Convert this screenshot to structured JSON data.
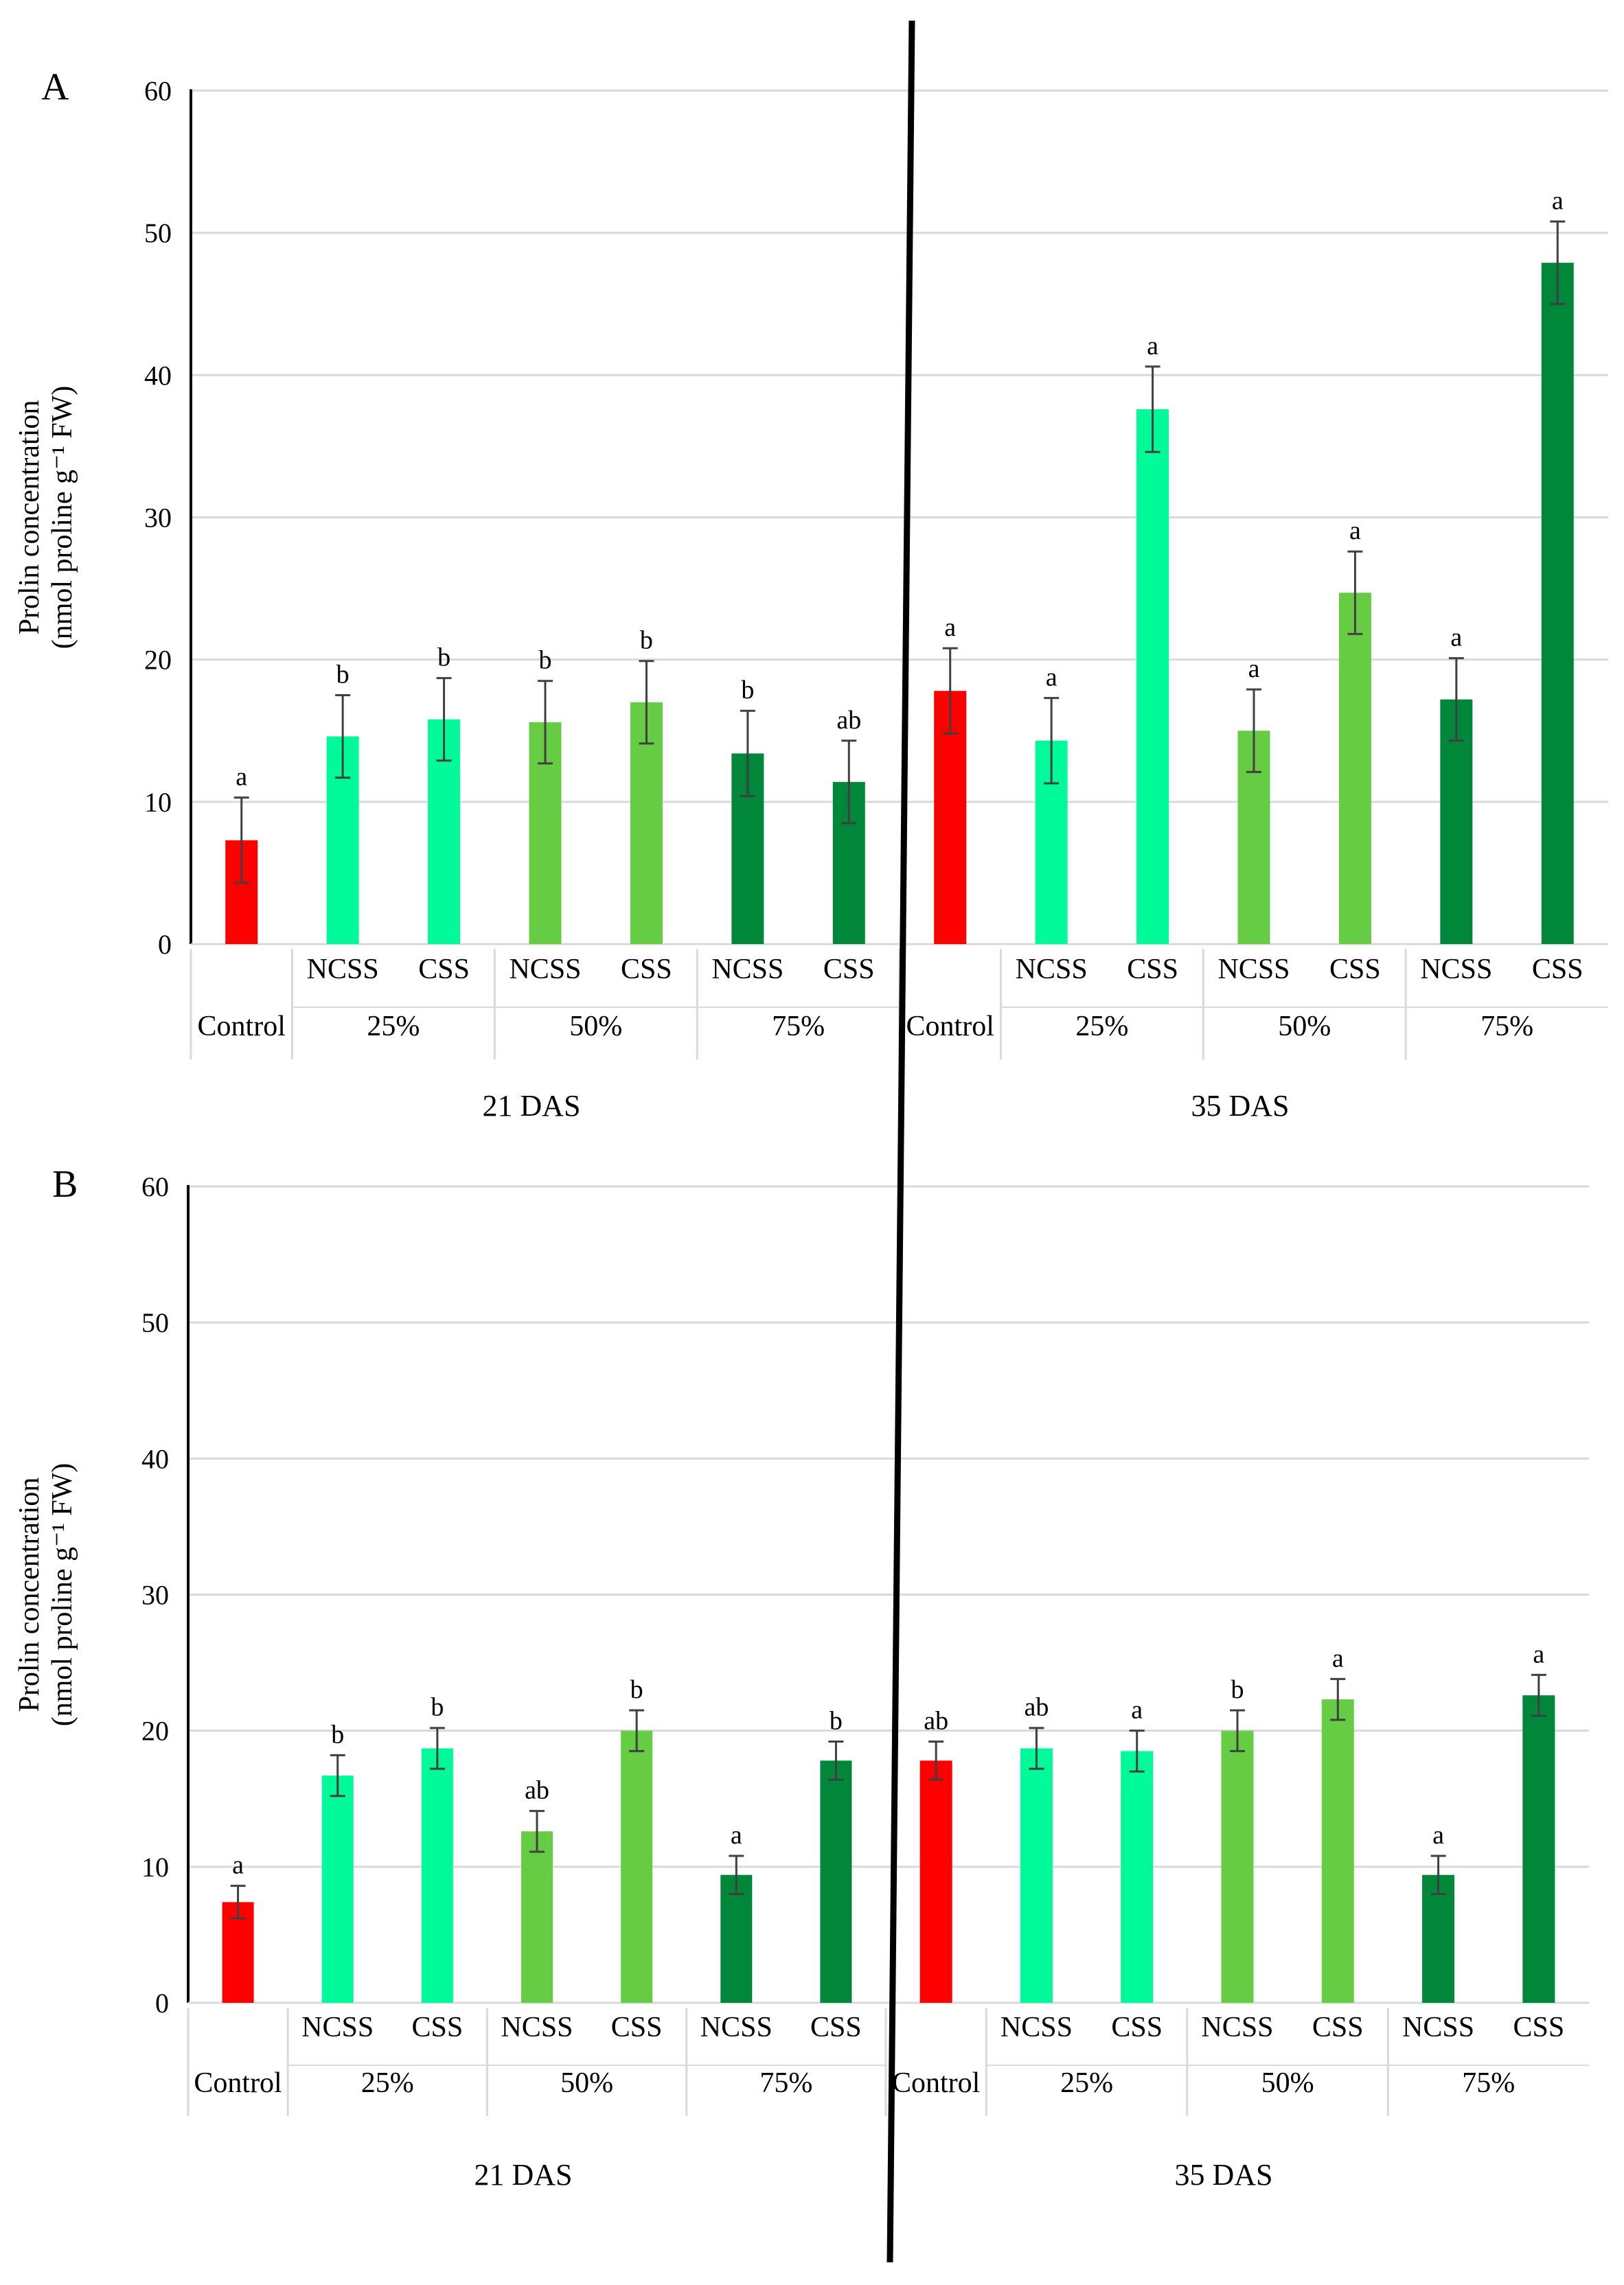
{
  "colors": {
    "control": "#FF0000",
    "level_25": "#00FA9A",
    "level_50": "#66CC44",
    "level_75": "#00873A",
    "gridline": "#D9D9D9",
    "axis": "#000000",
    "error_bar": "#404040"
  },
  "chart_data": [
    {
      "panel": "A",
      "type": "bar",
      "ylabel_line1": "Prolin concentration",
      "ylabel_line2": "(nmol proline g⁻¹ FW)",
      "ylim": [
        0,
        60
      ],
      "yticks": [
        0,
        10,
        20,
        30,
        40,
        50,
        60
      ],
      "groups": [
        {
          "label": "21 DAS",
          "categories": [
            {
              "level": "Control",
              "treatment": "",
              "color_key": "control",
              "value": 7.3,
              "error": 3.0,
              "letter": "a"
            },
            {
              "level": "25%",
              "treatment": "NCSS",
              "color_key": "level_25",
              "value": 14.6,
              "error": 2.9,
              "letter": "b"
            },
            {
              "level": "25%",
              "treatment": "CSS",
              "color_key": "level_25",
              "value": 15.8,
              "error": 2.9,
              "letter": "b"
            },
            {
              "level": "50%",
              "treatment": "NCSS",
              "color_key": "level_50",
              "value": 15.6,
              "error": 2.9,
              "letter": "b"
            },
            {
              "level": "50%",
              "treatment": "CSS",
              "color_key": "level_50",
              "value": 17.0,
              "error": 2.9,
              "letter": "b"
            },
            {
              "level": "75%",
              "treatment": "NCSS",
              "color_key": "level_75",
              "value": 13.4,
              "error": 3.0,
              "letter": "b"
            },
            {
              "level": "75%",
              "treatment": "CSS",
              "color_key": "level_75",
              "value": 11.4,
              "error": 2.9,
              "letter": "ab"
            }
          ]
        },
        {
          "label": "35 DAS",
          "categories": [
            {
              "level": "Control",
              "treatment": "",
              "color_key": "control",
              "value": 17.8,
              "error": 3.0,
              "letter": "a"
            },
            {
              "level": "25%",
              "treatment": "NCSS",
              "color_key": "level_25",
              "value": 14.3,
              "error": 3.0,
              "letter": "a"
            },
            {
              "level": "25%",
              "treatment": "CSS",
              "color_key": "level_25",
              "value": 37.6,
              "error": 3.0,
              "letter": "a"
            },
            {
              "level": "50%",
              "treatment": "NCSS",
              "color_key": "level_50",
              "value": 15.0,
              "error": 2.9,
              "letter": "a"
            },
            {
              "level": "50%",
              "treatment": "CSS",
              "color_key": "level_50",
              "value": 24.7,
              "error": 2.9,
              "letter": "a"
            },
            {
              "level": "75%",
              "treatment": "NCSS",
              "color_key": "level_75",
              "value": 17.2,
              "error": 2.9,
              "letter": "a"
            },
            {
              "level": "75%",
              "treatment": "CSS",
              "color_key": "level_75",
              "value": 47.9,
              "error": 2.9,
              "letter": "a"
            }
          ]
        }
      ]
    },
    {
      "panel": "B",
      "type": "bar",
      "ylabel_line1": "Prolin concentration",
      "ylabel_line2": "(nmol proline g⁻¹ FW)",
      "ylim": [
        0,
        60
      ],
      "yticks": [
        0,
        10,
        20,
        30,
        40,
        50,
        60
      ],
      "groups": [
        {
          "label": "21 DAS",
          "categories": [
            {
              "level": "Control",
              "treatment": "",
              "color_key": "control",
              "value": 7.4,
              "error": 1.2,
              "letter": "a"
            },
            {
              "level": "25%",
              "treatment": "NCSS",
              "color_key": "level_25",
              "value": 16.7,
              "error": 1.5,
              "letter": "b"
            },
            {
              "level": "25%",
              "treatment": "CSS",
              "color_key": "level_25",
              "value": 18.7,
              "error": 1.5,
              "letter": "b"
            },
            {
              "level": "50%",
              "treatment": "NCSS",
              "color_key": "level_50",
              "value": 12.6,
              "error": 1.5,
              "letter": "ab"
            },
            {
              "level": "50%",
              "treatment": "CSS",
              "color_key": "level_50",
              "value": 20.0,
              "error": 1.5,
              "letter": "b"
            },
            {
              "level": "75%",
              "treatment": "NCSS",
              "color_key": "level_75",
              "value": 9.4,
              "error": 1.4,
              "letter": "a"
            },
            {
              "level": "75%",
              "treatment": "CSS",
              "color_key": "level_75",
              "value": 17.8,
              "error": 1.4,
              "letter": "b"
            }
          ]
        },
        {
          "label": "35 DAS",
          "categories": [
            {
              "level": "Control",
              "treatment": "",
              "color_key": "control",
              "value": 17.8,
              "error": 1.4,
              "letter": "ab"
            },
            {
              "level": "25%",
              "treatment": "NCSS",
              "color_key": "level_25",
              "value": 18.7,
              "error": 1.5,
              "letter": "ab"
            },
            {
              "level": "25%",
              "treatment": "CSS",
              "color_key": "level_25",
              "value": 18.5,
              "error": 1.5,
              "letter": "a"
            },
            {
              "level": "50%",
              "treatment": "NCSS",
              "color_key": "level_50",
              "value": 20.0,
              "error": 1.5,
              "letter": "b"
            },
            {
              "level": "50%",
              "treatment": "CSS",
              "color_key": "level_50",
              "value": 22.3,
              "error": 1.5,
              "letter": "a"
            },
            {
              "level": "75%",
              "treatment": "NCSS",
              "color_key": "level_75",
              "value": 9.4,
              "error": 1.4,
              "letter": "a"
            },
            {
              "level": "75%",
              "treatment": "CSS",
              "color_key": "level_75",
              "value": 22.6,
              "error": 1.5,
              "letter": "a"
            }
          ]
        }
      ]
    }
  ]
}
